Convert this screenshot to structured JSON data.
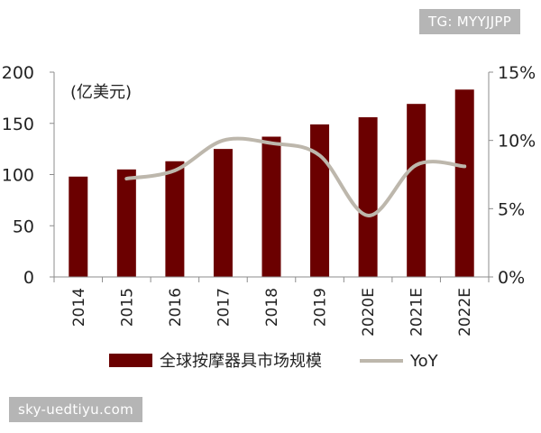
{
  "watermarks": {
    "top": "TG: MYYJJPP",
    "bottom": "sky-uedtiyu.com"
  },
  "chart_data": {
    "type": "bar+line",
    "unit_label": "(亿美元)",
    "categories": [
      "2014",
      "2015",
      "2016",
      "2017",
      "2018",
      "2019",
      "2020E",
      "2021E",
      "2022E"
    ],
    "series": [
      {
        "name": "全球按摩器具市场规模",
        "type": "bar",
        "axis": "left",
        "color": "#6b0000",
        "values": [
          98,
          105,
          113,
          125,
          137,
          149,
          156,
          169,
          183
        ]
      },
      {
        "name": "YoY",
        "type": "line",
        "axis": "right",
        "color": "#bdb7ac",
        "values": [
          null,
          7.2,
          7.8,
          10.0,
          9.8,
          8.9,
          4.5,
          8.2,
          8.1
        ]
      }
    ],
    "left_axis": {
      "min": 0,
      "max": 200,
      "ticks": [
        "0",
        "50",
        "100",
        "150",
        "200"
      ]
    },
    "right_axis": {
      "min": 0,
      "max": 15,
      "ticks": [
        "0%",
        "5%",
        "10%",
        "15%"
      ]
    },
    "legend_position": "bottom",
    "grid": false
  }
}
